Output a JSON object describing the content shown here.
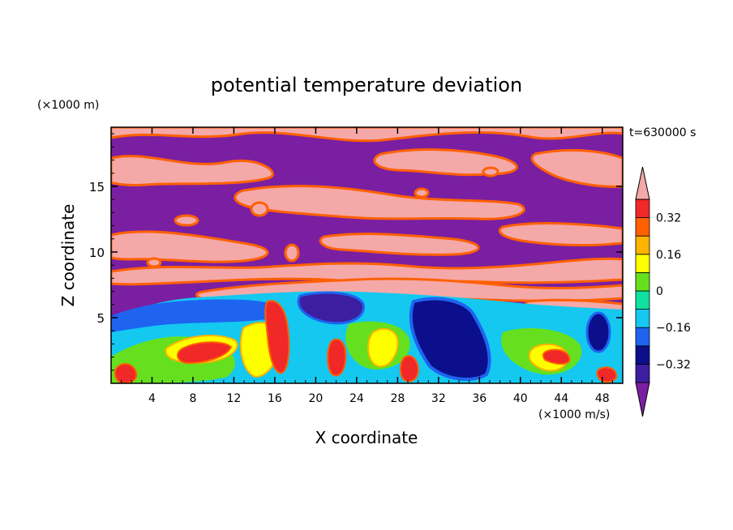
{
  "chart_data": {
    "type": "heatmap",
    "title": "potential temperature deviation",
    "xlabel": "X coordinate",
    "ylabel": "Z coordinate",
    "x_unit": "(×1000 m/s)",
    "y_unit": "(×1000 m)",
    "time_label": "t=630000 s",
    "xlim": [
      0,
      50
    ],
    "ylim": [
      0,
      19.5
    ],
    "x_ticks": [
      4,
      8,
      12,
      16,
      20,
      24,
      28,
      32,
      36,
      40,
      44,
      48
    ],
    "y_ticks": [
      5,
      10,
      15
    ],
    "colorbar": {
      "levels": [
        -0.4,
        -0.32,
        -0.24,
        -0.16,
        -0.08,
        0,
        0.08,
        0.16,
        0.24,
        0.32,
        0.4
      ],
      "tick_labels": [
        "0.32",
        "0.16",
        "0",
        "−0.16",
        "−0.32"
      ],
      "tick_values": [
        0.32,
        0.16,
        0,
        -0.16,
        -0.32
      ],
      "extend": "both",
      "colors": [
        "#7a1fa2",
        "#3d1ea0",
        "#0b0f8c",
        "#1e64f0",
        "#14c8f0",
        "#10e0a0",
        "#66e01e",
        "#ffff00",
        "#ffb400",
        "#ff6000",
        "#f02828",
        "#f5a8a8"
      ]
    },
    "field_description_regions": [
      {
        "z_range": [
          0,
          7
        ],
        "character": "mixed warm/cool turbulent eddies, values -0.4 to 0.4"
      },
      {
        "z_range": [
          7,
          19.5
        ],
        "character": "layered bands alternating >0.4 (pink) and < -0.4 (purple)"
      }
    ]
  }
}
